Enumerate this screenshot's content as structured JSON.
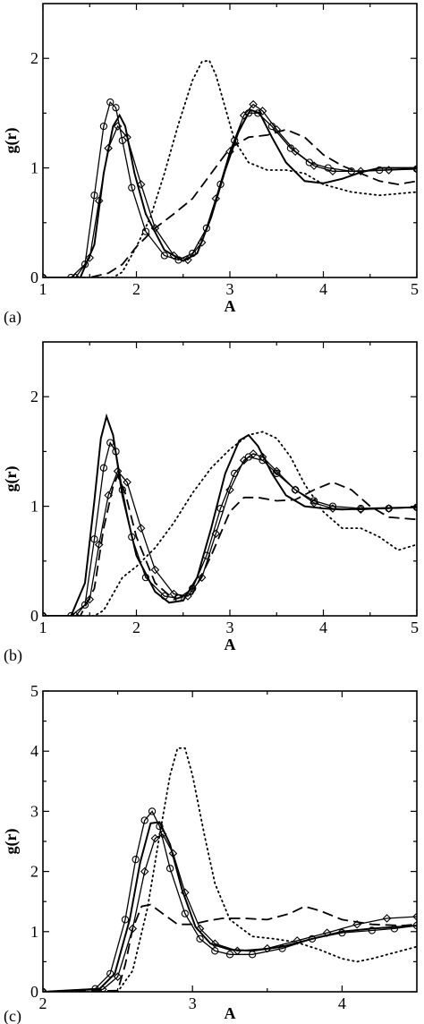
{
  "figure": {
    "background": "#ffffff",
    "line_color": "#000000"
  },
  "chart_data": [
    {
      "type": "line",
      "panel_label": "(a)",
      "xlabel": "A",
      "ylabel": "g(r)",
      "xlim": [
        1,
        5
      ],
      "ylim": [
        0,
        2.5
      ],
      "xticks": [
        1,
        2,
        3,
        4,
        5
      ],
      "yticks": [
        0,
        1,
        2
      ],
      "grid": false,
      "series": [
        {
          "style": "solid-circles",
          "x": [
            1.0,
            1.3,
            1.45,
            1.55,
            1.65,
            1.72,
            1.78,
            1.85,
            1.95,
            2.1,
            2.3,
            2.45,
            2.6,
            2.75,
            2.9,
            3.05,
            3.2,
            3.3,
            3.45,
            3.65,
            3.85,
            4.05,
            4.3,
            4.6,
            5.0
          ],
          "y": [
            0,
            0,
            0.12,
            0.75,
            1.38,
            1.6,
            1.55,
            1.25,
            0.82,
            0.42,
            0.2,
            0.16,
            0.22,
            0.45,
            0.85,
            1.25,
            1.5,
            1.5,
            1.38,
            1.18,
            1.05,
            1.0,
            0.97,
            0.98,
            0.99
          ]
        },
        {
          "style": "solid-diamonds",
          "x": [
            1.0,
            1.35,
            1.5,
            1.6,
            1.7,
            1.8,
            1.9,
            2.05,
            2.2,
            2.4,
            2.55,
            2.7,
            2.85,
            3.0,
            3.15,
            3.25,
            3.35,
            3.5,
            3.7,
            3.9,
            4.1,
            4.4,
            4.7,
            5.0
          ],
          "y": [
            0,
            0,
            0.18,
            0.7,
            1.18,
            1.38,
            1.28,
            0.85,
            0.45,
            0.2,
            0.16,
            0.32,
            0.72,
            1.15,
            1.48,
            1.58,
            1.52,
            1.35,
            1.15,
            1.02,
            0.97,
            0.97,
            0.98,
            0.99
          ]
        },
        {
          "style": "solid",
          "x": [
            1.0,
            1.4,
            1.55,
            1.65,
            1.75,
            1.82,
            1.88,
            1.98,
            2.1,
            2.3,
            2.5,
            2.65,
            2.8,
            2.95,
            3.1,
            3.22,
            3.32,
            3.45,
            3.6,
            3.8,
            4.0,
            4.2,
            4.4,
            4.6,
            5.0
          ],
          "y": [
            0,
            0,
            0.3,
            0.95,
            1.38,
            1.48,
            1.38,
            0.95,
            0.58,
            0.25,
            0.15,
            0.22,
            0.55,
            0.98,
            1.35,
            1.53,
            1.5,
            1.28,
            1.05,
            0.88,
            0.86,
            0.9,
            0.96,
            1.0,
            1.0
          ]
        },
        {
          "style": "dashed",
          "x": [
            1.0,
            1.5,
            1.7,
            1.85,
            2.0,
            2.2,
            2.4,
            2.6,
            2.8,
            3.0,
            3.2,
            3.4,
            3.6,
            3.8,
            4.0,
            4.2,
            4.4,
            4.6,
            4.8,
            5.0
          ],
          "y": [
            0,
            0,
            0.04,
            0.12,
            0.28,
            0.45,
            0.58,
            0.72,
            0.95,
            1.18,
            1.28,
            1.3,
            1.35,
            1.28,
            1.12,
            1.02,
            0.95,
            0.88,
            0.85,
            0.88
          ]
        },
        {
          "style": "dotted",
          "x": [
            1.0,
            1.75,
            1.85,
            2.0,
            2.15,
            2.3,
            2.45,
            2.6,
            2.7,
            2.78,
            2.85,
            2.95,
            3.05,
            3.2,
            3.4,
            3.6,
            3.8,
            4.0,
            4.3,
            4.6,
            5.0
          ],
          "y": [
            0,
            0,
            0.05,
            0.28,
            0.55,
            0.95,
            1.4,
            1.8,
            1.97,
            1.98,
            1.85,
            1.55,
            1.25,
            1.05,
            0.98,
            0.98,
            0.95,
            0.85,
            0.78,
            0.75,
            0.78
          ]
        }
      ]
    },
    {
      "type": "line",
      "panel_label": "(b)",
      "xlabel": "A",
      "ylabel": "g(r)",
      "xlim": [
        1,
        5
      ],
      "ylim": [
        0,
        2.5
      ],
      "xticks": [
        1,
        2,
        3,
        4,
        5
      ],
      "yticks": [
        0,
        1,
        2
      ],
      "grid": false,
      "series": [
        {
          "style": "solid-circles",
          "x": [
            1.0,
            1.3,
            1.45,
            1.55,
            1.65,
            1.72,
            1.78,
            1.85,
            1.95,
            2.1,
            2.3,
            2.45,
            2.6,
            2.75,
            2.9,
            3.05,
            3.2,
            3.35,
            3.5,
            3.7,
            3.9,
            4.1,
            4.4,
            4.7,
            5.0
          ],
          "y": [
            0,
            0,
            0.1,
            0.7,
            1.35,
            1.58,
            1.5,
            1.15,
            0.72,
            0.35,
            0.18,
            0.16,
            0.25,
            0.55,
            0.98,
            1.3,
            1.45,
            1.42,
            1.3,
            1.15,
            1.05,
            1.0,
            0.98,
            0.98,
            0.99
          ]
        },
        {
          "style": "solid-diamonds",
          "x": [
            1.0,
            1.35,
            1.5,
            1.6,
            1.7,
            1.8,
            1.9,
            2.05,
            2.2,
            2.4,
            2.55,
            2.7,
            2.85,
            3.0,
            3.15,
            3.25,
            3.35,
            3.5,
            3.7,
            3.9,
            4.1,
            4.4,
            4.7,
            5.0
          ],
          "y": [
            0,
            0,
            0.15,
            0.65,
            1.1,
            1.32,
            1.22,
            0.8,
            0.42,
            0.2,
            0.18,
            0.35,
            0.75,
            1.15,
            1.42,
            1.48,
            1.45,
            1.32,
            1.15,
            1.03,
            0.98,
            0.97,
            0.98,
            0.99
          ]
        },
        {
          "style": "solid",
          "x": [
            1.0,
            1.3,
            1.45,
            1.55,
            1.62,
            1.68,
            1.75,
            1.85,
            2.0,
            2.2,
            2.35,
            2.5,
            2.65,
            2.8,
            2.95,
            3.1,
            3.2,
            3.3,
            3.45,
            3.6,
            3.8,
            4.0,
            4.2,
            4.5,
            5.0
          ],
          "y": [
            0,
            0,
            0.3,
            1.05,
            1.62,
            1.82,
            1.65,
            1.1,
            0.55,
            0.22,
            0.12,
            0.14,
            0.35,
            0.8,
            1.3,
            1.6,
            1.65,
            1.55,
            1.3,
            1.1,
            1.0,
            0.98,
            0.97,
            0.98,
            0.99
          ]
        },
        {
          "style": "dashed",
          "x": [
            1.0,
            1.4,
            1.55,
            1.65,
            1.75,
            1.8,
            1.88,
            2.0,
            2.2,
            2.4,
            2.6,
            2.8,
            3.0,
            3.15,
            3.3,
            3.5,
            3.7,
            3.9,
            4.1,
            4.3,
            4.5,
            4.7,
            5.0
          ],
          "y": [
            0,
            0,
            0.25,
            0.8,
            1.18,
            1.28,
            1.12,
            0.72,
            0.3,
            0.15,
            0.2,
            0.55,
            0.95,
            1.08,
            1.08,
            1.05,
            1.06,
            1.15,
            1.22,
            1.15,
            1.0,
            0.9,
            0.88
          ]
        },
        {
          "style": "dotted",
          "x": [
            1.0,
            1.55,
            1.65,
            1.75,
            1.85,
            2.0,
            2.2,
            2.4,
            2.6,
            2.8,
            3.0,
            3.2,
            3.35,
            3.5,
            3.65,
            3.8,
            4.0,
            4.2,
            4.4,
            4.6,
            4.8,
            5.0
          ],
          "y": [
            0,
            0,
            0.05,
            0.2,
            0.35,
            0.45,
            0.62,
            0.85,
            1.12,
            1.35,
            1.52,
            1.65,
            1.68,
            1.62,
            1.45,
            1.2,
            0.95,
            0.8,
            0.8,
            0.72,
            0.6,
            0.65
          ]
        }
      ]
    },
    {
      "type": "line",
      "panel_label": "(c)",
      "xlabel": "A",
      "ylabel": "g(r)",
      "xlim": [
        2,
        4.5
      ],
      "ylim": [
        0,
        5
      ],
      "xticks": [
        2,
        3,
        4
      ],
      "yticks": [
        0,
        1,
        2,
        3,
        4,
        5
      ],
      "grid": false,
      "series": [
        {
          "style": "solid-circles",
          "x": [
            2.0,
            2.35,
            2.45,
            2.55,
            2.62,
            2.68,
            2.73,
            2.78,
            2.85,
            2.95,
            3.05,
            3.15,
            3.25,
            3.4,
            3.6,
            3.8,
            4.0,
            4.2,
            4.35,
            4.5
          ],
          "y": [
            0,
            0.05,
            0.3,
            1.2,
            2.2,
            2.85,
            3.0,
            2.75,
            2.05,
            1.3,
            0.88,
            0.68,
            0.62,
            0.62,
            0.72,
            0.88,
            0.98,
            1.02,
            1.05,
            1.1
          ]
        },
        {
          "style": "solid-diamonds",
          "x": [
            2.0,
            2.4,
            2.5,
            2.6,
            2.68,
            2.75,
            2.8,
            2.87,
            2.95,
            3.05,
            3.15,
            3.3,
            3.5,
            3.7,
            3.9,
            4.1,
            4.3,
            4.5
          ],
          "y": [
            0,
            0.04,
            0.25,
            1.05,
            2.0,
            2.55,
            2.62,
            2.3,
            1.65,
            1.05,
            0.8,
            0.68,
            0.72,
            0.85,
            0.98,
            1.12,
            1.22,
            1.25
          ]
        },
        {
          "style": "solid",
          "x": [
            2.0,
            2.38,
            2.48,
            2.58,
            2.65,
            2.72,
            2.78,
            2.85,
            2.93,
            3.02,
            3.12,
            3.25,
            3.4,
            3.6,
            3.8,
            4.0,
            4.2,
            4.5
          ],
          "y": [
            0,
            0.05,
            0.3,
            1.2,
            2.15,
            2.8,
            2.82,
            2.45,
            1.7,
            1.08,
            0.8,
            0.7,
            0.68,
            0.75,
            0.88,
            1.0,
            1.05,
            1.1
          ]
        },
        {
          "style": "dashed",
          "x": [
            2.0,
            2.5,
            2.55,
            2.6,
            2.66,
            2.72,
            2.8,
            2.9,
            3.0,
            3.1,
            3.2,
            3.35,
            3.5,
            3.65,
            3.75,
            3.85,
            4.0,
            4.2,
            4.4,
            4.5
          ],
          "y": [
            0,
            0.02,
            0.45,
            1.05,
            1.42,
            1.45,
            1.3,
            1.12,
            1.12,
            1.18,
            1.22,
            1.22,
            1.2,
            1.3,
            1.42,
            1.35,
            1.2,
            1.12,
            1.1,
            1.12
          ]
        },
        {
          "style": "dotted",
          "x": [
            2.0,
            2.5,
            2.6,
            2.7,
            2.78,
            2.85,
            2.9,
            2.95,
            3.0,
            3.08,
            3.15,
            3.25,
            3.4,
            3.55,
            3.7,
            3.85,
            4.0,
            4.1,
            4.2,
            4.35,
            4.5
          ],
          "y": [
            0,
            0,
            0.35,
            1.4,
            2.6,
            3.6,
            4.05,
            4.05,
            3.6,
            2.6,
            1.8,
            1.2,
            0.92,
            0.88,
            0.82,
            0.7,
            0.55,
            0.5,
            0.55,
            0.65,
            0.75
          ]
        }
      ]
    }
  ]
}
